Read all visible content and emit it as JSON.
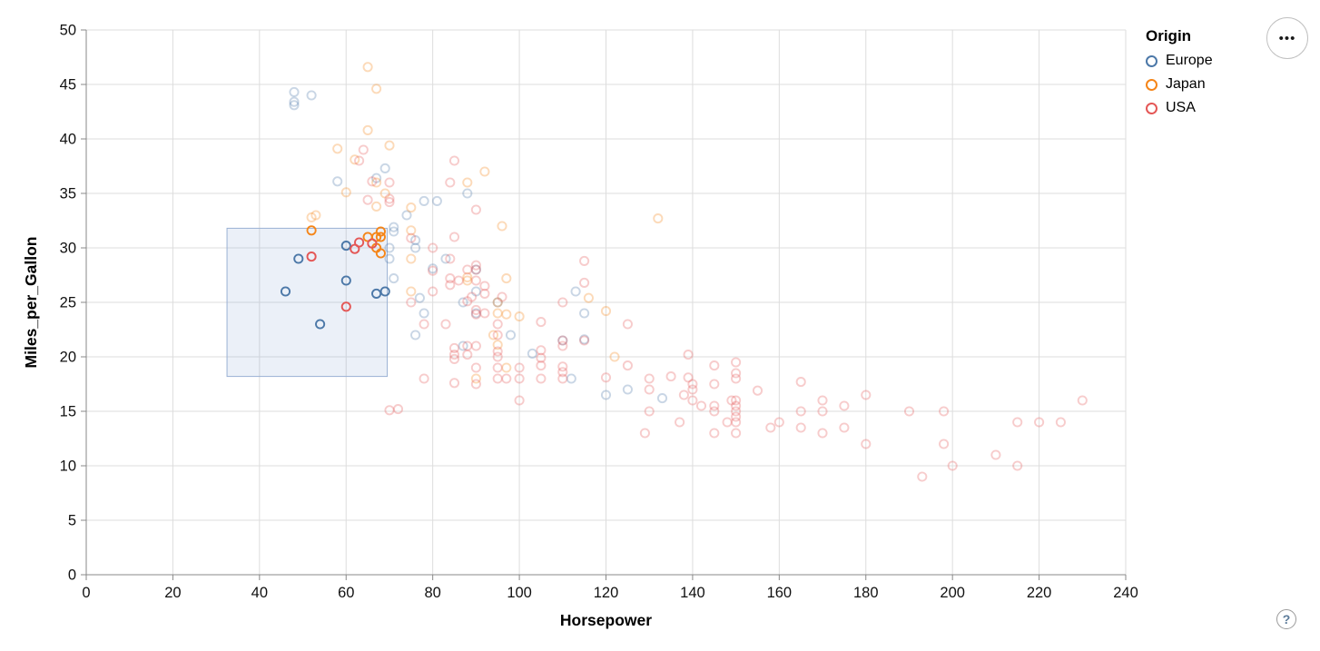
{
  "legend": {
    "title": "Origin",
    "items": [
      {
        "label": "Europe",
        "color": "#4c78a8"
      },
      {
        "label": "Japan",
        "color": "#f58518"
      },
      {
        "label": "USA",
        "color": "#e45756"
      }
    ]
  },
  "controls": {
    "menu_icon": "•••",
    "help_icon": "?"
  },
  "chart_data": {
    "type": "scatter",
    "title": "",
    "xlabel": "Horsepower",
    "ylabel": "Miles_per_Gallon",
    "xlim": [
      0,
      240
    ],
    "ylim": [
      0,
      50
    ],
    "x_ticks": [
      0,
      20,
      40,
      60,
      80,
      100,
      120,
      140,
      160,
      180,
      200,
      220,
      240
    ],
    "y_ticks": [
      0,
      5,
      10,
      15,
      20,
      25,
      30,
      35,
      40,
      45,
      50
    ],
    "grid": true,
    "legend_position": "top-right",
    "marks": "hollow-circle",
    "unselected_opacity": 0.3,
    "selected_opacity": 1,
    "brush": {
      "x": [
        32.5,
        69.5
      ],
      "y": [
        18.2,
        31.8
      ],
      "fill": "#7a9ace",
      "fill_opacity": 0.15,
      "stroke": "#9ab1d4"
    },
    "series": [
      {
        "name": "Europe",
        "color": "#4c78a8",
        "points": [
          [
            46,
            26
          ],
          [
            49,
            29
          ],
          [
            54,
            23
          ],
          [
            60,
            27
          ],
          [
            60,
            30.2
          ],
          [
            67,
            25.8
          ],
          [
            69,
            26
          ],
          [
            70,
            29
          ],
          [
            70,
            30
          ],
          [
            71,
            27.2
          ],
          [
            71,
            31.5
          ],
          [
            71,
            31.9
          ],
          [
            74,
            33
          ],
          [
            76,
            22
          ],
          [
            76,
            30
          ],
          [
            76,
            30.7
          ],
          [
            77,
            25.4
          ],
          [
            78,
            24
          ],
          [
            78,
            34.3
          ],
          [
            80,
            28.1
          ],
          [
            81,
            34.3
          ],
          [
            83,
            29
          ],
          [
            87,
            21
          ],
          [
            87,
            25
          ],
          [
            88,
            35
          ],
          [
            90,
            24
          ],
          [
            90,
            26
          ],
          [
            90,
            28
          ],
          [
            95,
            25
          ],
          [
            98,
            22
          ],
          [
            103,
            20.3
          ],
          [
            110,
            21.5
          ],
          [
            112,
            18
          ],
          [
            113,
            26
          ],
          [
            115,
            21.6
          ],
          [
            115,
            24
          ],
          [
            120,
            16.5
          ],
          [
            125,
            17
          ],
          [
            133,
            16.2
          ],
          [
            48,
            43.1
          ],
          [
            48,
            43.4
          ],
          [
            48,
            44.3
          ],
          [
            52,
            44
          ],
          [
            58,
            36.1
          ],
          [
            67,
            36.4
          ],
          [
            69,
            37.3
          ]
        ]
      },
      {
        "name": "Japan",
        "color": "#f58518",
        "points": [
          [
            52,
            31.6
          ],
          [
            65,
            31
          ],
          [
            67,
            30
          ],
          [
            67,
            31
          ],
          [
            68,
            29.5
          ],
          [
            68,
            31
          ],
          [
            68,
            31.5
          ],
          [
            52,
            32.8
          ],
          [
            53,
            33
          ],
          [
            58,
            39.1
          ],
          [
            60,
            35.1
          ],
          [
            62,
            38.1
          ],
          [
            65,
            40.8
          ],
          [
            65,
            46.6
          ],
          [
            67,
            33.8
          ],
          [
            67,
            36
          ],
          [
            67,
            44.6
          ],
          [
            69,
            35
          ],
          [
            70,
            39.4
          ],
          [
            75,
            26
          ],
          [
            75,
            29
          ],
          [
            75,
            31.6
          ],
          [
            75,
            33.7
          ],
          [
            88,
            27
          ],
          [
            88,
            27.3
          ],
          [
            88,
            36
          ],
          [
            90,
            18
          ],
          [
            92,
            37
          ],
          [
            94,
            22
          ],
          [
            95,
            21.1
          ],
          [
            95,
            24
          ],
          [
            95,
            25
          ],
          [
            96,
            32
          ],
          [
            97,
            19
          ],
          [
            97,
            23.9
          ],
          [
            97,
            27.2
          ],
          [
            100,
            23.7
          ],
          [
            116,
            25.4
          ],
          [
            120,
            24.2
          ],
          [
            122,
            20
          ],
          [
            132,
            32.7
          ]
        ]
      },
      {
        "name": "USA",
        "color": "#e45756",
        "points": [
          [
            52,
            29.2
          ],
          [
            60,
            24.6
          ],
          [
            63,
            30.5
          ],
          [
            66,
            30.4
          ],
          [
            62,
            29.9
          ],
          [
            63,
            38
          ],
          [
            64,
            39
          ],
          [
            65,
            34.4
          ],
          [
            66,
            36.1
          ],
          [
            70,
            15.1
          ],
          [
            72,
            15.2
          ],
          [
            70,
            34.2
          ],
          [
            70,
            34.5
          ],
          [
            70,
            36
          ],
          [
            75,
            25
          ],
          [
            75,
            30.9
          ],
          [
            78,
            18
          ],
          [
            78,
            23
          ],
          [
            80,
            26
          ],
          [
            80,
            27.9
          ],
          [
            80,
            30
          ],
          [
            83,
            23
          ],
          [
            84,
            26.6
          ],
          [
            84,
            27.2
          ],
          [
            84,
            29
          ],
          [
            84,
            36
          ],
          [
            85,
            17.6
          ],
          [
            85,
            19.8
          ],
          [
            85,
            20.2
          ],
          [
            85,
            20.8
          ],
          [
            85,
            31
          ],
          [
            85,
            38
          ],
          [
            86,
            27
          ],
          [
            88,
            20.2
          ],
          [
            88,
            21
          ],
          [
            88,
            25.1
          ],
          [
            88,
            28
          ],
          [
            89,
            25.5
          ],
          [
            90,
            17.5
          ],
          [
            90,
            19
          ],
          [
            90,
            21
          ],
          [
            90,
            23.9
          ],
          [
            90,
            24.3
          ],
          [
            90,
            27
          ],
          [
            90,
            28
          ],
          [
            90,
            28.4
          ],
          [
            90,
            33.5
          ],
          [
            92,
            24
          ],
          [
            92,
            25.8
          ],
          [
            92,
            26.5
          ],
          [
            95,
            18
          ],
          [
            95,
            19
          ],
          [
            95,
            20
          ],
          [
            95,
            20.5
          ],
          [
            95,
            22
          ],
          [
            95,
            23
          ],
          [
            96,
            25.5
          ],
          [
            97,
            18
          ],
          [
            100,
            16
          ],
          [
            100,
            18
          ],
          [
            100,
            19
          ],
          [
            105,
            18
          ],
          [
            105,
            19.2
          ],
          [
            105,
            19.9
          ],
          [
            105,
            20.6
          ],
          [
            105,
            23.2
          ],
          [
            110,
            18
          ],
          [
            110,
            18.6
          ],
          [
            110,
            19.1
          ],
          [
            110,
            21
          ],
          [
            110,
            21.5
          ],
          [
            110,
            25
          ],
          [
            115,
            21.5
          ],
          [
            115,
            26.8
          ],
          [
            115,
            28.8
          ],
          [
            120,
            18.1
          ],
          [
            125,
            19.2
          ],
          [
            125,
            23
          ],
          [
            129,
            13
          ],
          [
            130,
            15
          ],
          [
            130,
            17
          ],
          [
            130,
            18
          ],
          [
            135,
            18.2
          ],
          [
            137,
            14
          ],
          [
            138,
            16.5
          ],
          [
            139,
            18.1
          ],
          [
            139,
            20.2
          ],
          [
            140,
            16
          ],
          [
            140,
            17
          ],
          [
            140,
            17.5
          ],
          [
            142,
            15.5
          ],
          [
            145,
            13
          ],
          [
            145,
            15
          ],
          [
            145,
            15.5
          ],
          [
            145,
            17.5
          ],
          [
            145,
            19.2
          ],
          [
            148,
            14
          ],
          [
            149,
            16
          ],
          [
            150,
            13
          ],
          [
            150,
            14
          ],
          [
            150,
            14.5
          ],
          [
            150,
            15
          ],
          [
            150,
            15.5
          ],
          [
            150,
            16
          ],
          [
            150,
            18
          ],
          [
            150,
            18.5
          ],
          [
            150,
            19.5
          ],
          [
            155,
            16.9
          ],
          [
            158,
            13.5
          ],
          [
            160,
            14
          ],
          [
            165,
            13.5
          ],
          [
            165,
            15
          ],
          [
            165,
            17.7
          ],
          [
            170,
            13
          ],
          [
            170,
            15
          ],
          [
            170,
            16
          ],
          [
            175,
            13.5
          ],
          [
            175,
            15.5
          ],
          [
            180,
            12
          ],
          [
            180,
            16.5
          ],
          [
            190,
            15
          ],
          [
            193,
            9
          ],
          [
            198,
            12
          ],
          [
            198,
            15
          ],
          [
            200,
            10
          ],
          [
            210,
            11
          ],
          [
            215,
            10
          ],
          [
            215,
            14
          ],
          [
            220,
            14
          ],
          [
            225,
            14
          ],
          [
            230,
            16
          ]
        ]
      }
    ]
  }
}
